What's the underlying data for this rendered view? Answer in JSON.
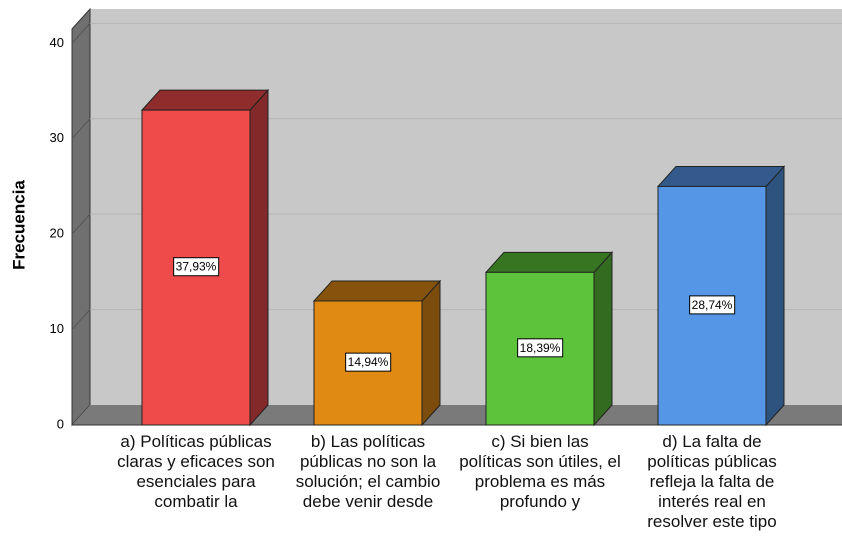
{
  "chart_data": {
    "type": "bar3d",
    "y_label": "Frecuencia",
    "categories": [
      "a) Políticas públicas claras y eficaces son esenciales para combatir la",
      "b) Las políticas públicas no son la solución; el cambio debe venir desde",
      "c) Si bien las políticas son útiles, el problema es más profundo y",
      "d) La falta de políticas públicas refleja la falta de interés real en resolver este tipo"
    ],
    "values": [
      33,
      13,
      16,
      25
    ],
    "percent_labels": [
      "37,93%",
      "14,94%",
      "18,39%",
      "28,74%"
    ],
    "colors": [
      "#ef4b4b",
      "#e08a14",
      "#5cc33a",
      "#5596e6"
    ],
    "ylim": [
      0,
      41.5
    ],
    "yticks": [
      0,
      10,
      20,
      30,
      40
    ],
    "grid": true
  }
}
